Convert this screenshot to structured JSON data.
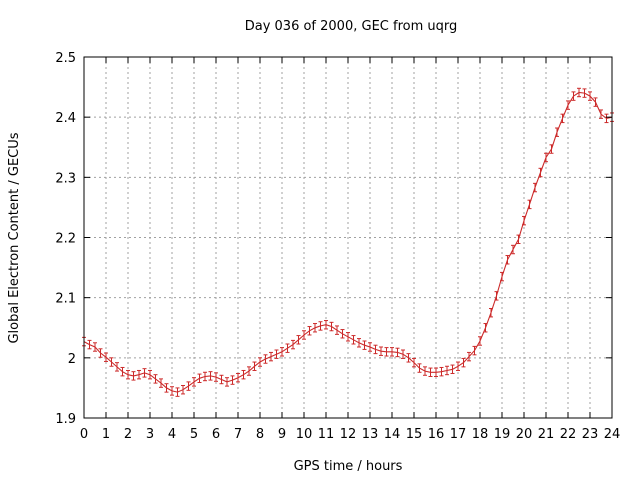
{
  "chart_data": {
    "type": "line",
    "title": "Day 036 of 2000, GEC from uqrg",
    "xlabel": "GPS time / hours",
    "ylabel": "Global Electron Content / GECUs",
    "xlim": [
      0,
      24
    ],
    "ylim": [
      1.9,
      2.5
    ],
    "grid": true,
    "xticks": [
      "0",
      "1",
      "2",
      "3",
      "4",
      "5",
      "6",
      "7",
      "8",
      "9",
      "10",
      "11",
      "12",
      "13",
      "14",
      "15",
      "16",
      "17",
      "18",
      "19",
      "20",
      "21",
      "22",
      "23",
      "24"
    ],
    "yticks": [
      "1.9",
      "2",
      "2.1",
      "2.2",
      "2.3",
      "2.4",
      "2.5"
    ],
    "series": [
      {
        "name": "GEC",
        "color": "#cc2a2a",
        "error": 0.007,
        "x": [
          0,
          0.25,
          0.5,
          0.75,
          1,
          1.25,
          1.5,
          1.75,
          2,
          2.25,
          2.5,
          2.75,
          3,
          3.25,
          3.5,
          3.75,
          4,
          4.25,
          4.5,
          4.75,
          5,
          5.25,
          5.5,
          5.75,
          6,
          6.25,
          6.5,
          6.75,
          7,
          7.25,
          7.5,
          7.75,
          8,
          8.25,
          8.5,
          8.75,
          9,
          9.25,
          9.5,
          9.75,
          10,
          10.25,
          10.5,
          10.75,
          11,
          11.25,
          11.5,
          11.75,
          12,
          12.25,
          12.5,
          12.75,
          13,
          13.25,
          13.5,
          13.75,
          14,
          14.25,
          14.5,
          14.75,
          15,
          15.25,
          15.5,
          15.75,
          16,
          16.25,
          16.5,
          16.75,
          17,
          17.25,
          17.5,
          17.75,
          18,
          18.25,
          18.5,
          18.75,
          19,
          19.25,
          19.5,
          19.75,
          20,
          20.25,
          20.5,
          20.75,
          21,
          21.25,
          21.5,
          21.75,
          22,
          22.25,
          22.5,
          22.75,
          23,
          23.25,
          23.5,
          23.75,
          24
        ],
        "y": [
          2.027,
          2.022,
          2.018,
          2.008,
          2.001,
          1.993,
          1.985,
          1.977,
          1.972,
          1.97,
          1.972,
          1.975,
          1.972,
          1.965,
          1.958,
          1.95,
          1.945,
          1.943,
          1.947,
          1.953,
          1.96,
          1.966,
          1.969,
          1.97,
          1.968,
          1.964,
          1.96,
          1.963,
          1.967,
          1.972,
          1.978,
          1.986,
          1.993,
          1.998,
          2.002,
          2.006,
          2.01,
          2.016,
          2.022,
          2.03,
          2.038,
          2.045,
          2.05,
          2.053,
          2.055,
          2.052,
          2.046,
          2.04,
          2.035,
          2.03,
          2.025,
          2.021,
          2.018,
          2.014,
          2.011,
          2.01,
          2.01,
          2.009,
          2.006,
          2.0,
          1.992,
          1.983,
          1.978,
          1.976,
          1.976,
          1.977,
          1.979,
          1.981,
          1.986,
          1.992,
          2.002,
          2.012,
          2.028,
          2.05,
          2.075,
          2.103,
          2.135,
          2.163,
          2.18,
          2.197,
          2.228,
          2.255,
          2.283,
          2.308,
          2.333,
          2.347,
          2.375,
          2.398,
          2.42,
          2.435,
          2.441,
          2.44,
          2.435,
          2.425,
          2.405,
          2.398,
          2.4
        ]
      }
    ]
  }
}
